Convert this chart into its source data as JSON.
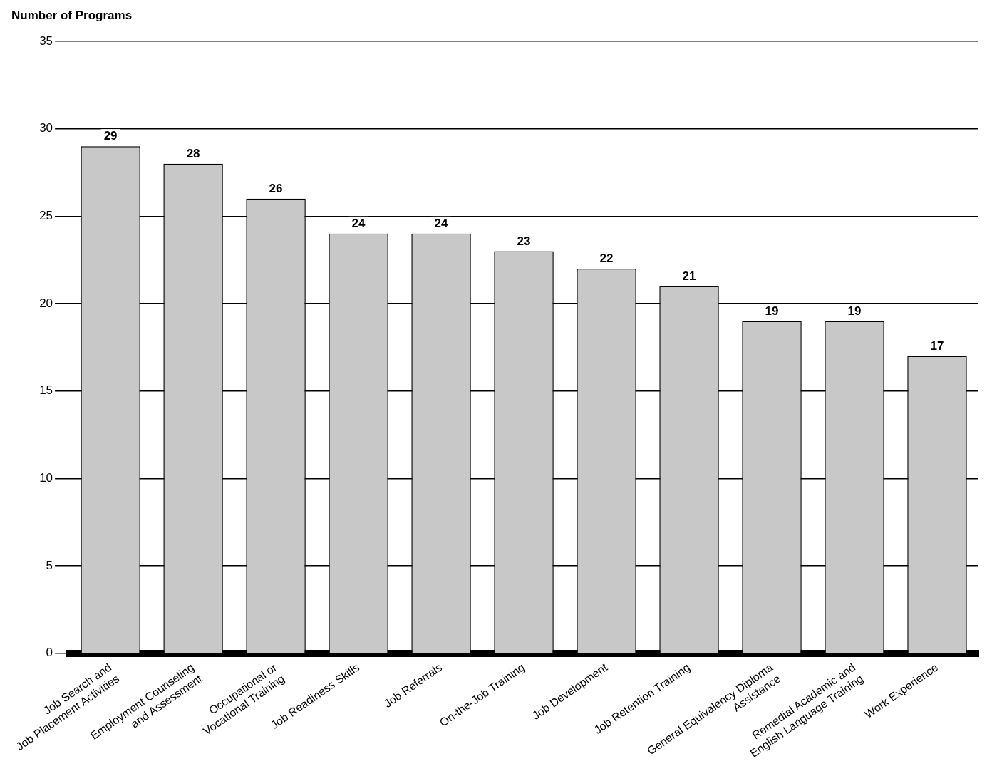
{
  "chart_data": {
    "type": "bar",
    "ylabel": "Number of Programs",
    "categories": [
      "Job Search and\nJob Placement Activities",
      "Employment Counseling\nand Assessment",
      "Occupational or\nVocational Training",
      "Job Readiness Skills",
      "Job Referrals",
      "On-the-Job Training",
      "Job Development",
      "Job Retention Training",
      "General Equivalency Diploma\nAssistance",
      "Remedial Academic and\nEnglish Language Training",
      "Work Experience"
    ],
    "values": [
      29,
      28,
      26,
      24,
      24,
      23,
      22,
      21,
      19,
      19,
      17
    ],
    "color": "#c8c8c8",
    "ylim": [
      0,
      35
    ],
    "yticks": [
      0,
      5,
      10,
      15,
      20,
      25,
      30,
      35
    ],
    "grid": "y",
    "data_labels": true,
    "legend": false
  }
}
